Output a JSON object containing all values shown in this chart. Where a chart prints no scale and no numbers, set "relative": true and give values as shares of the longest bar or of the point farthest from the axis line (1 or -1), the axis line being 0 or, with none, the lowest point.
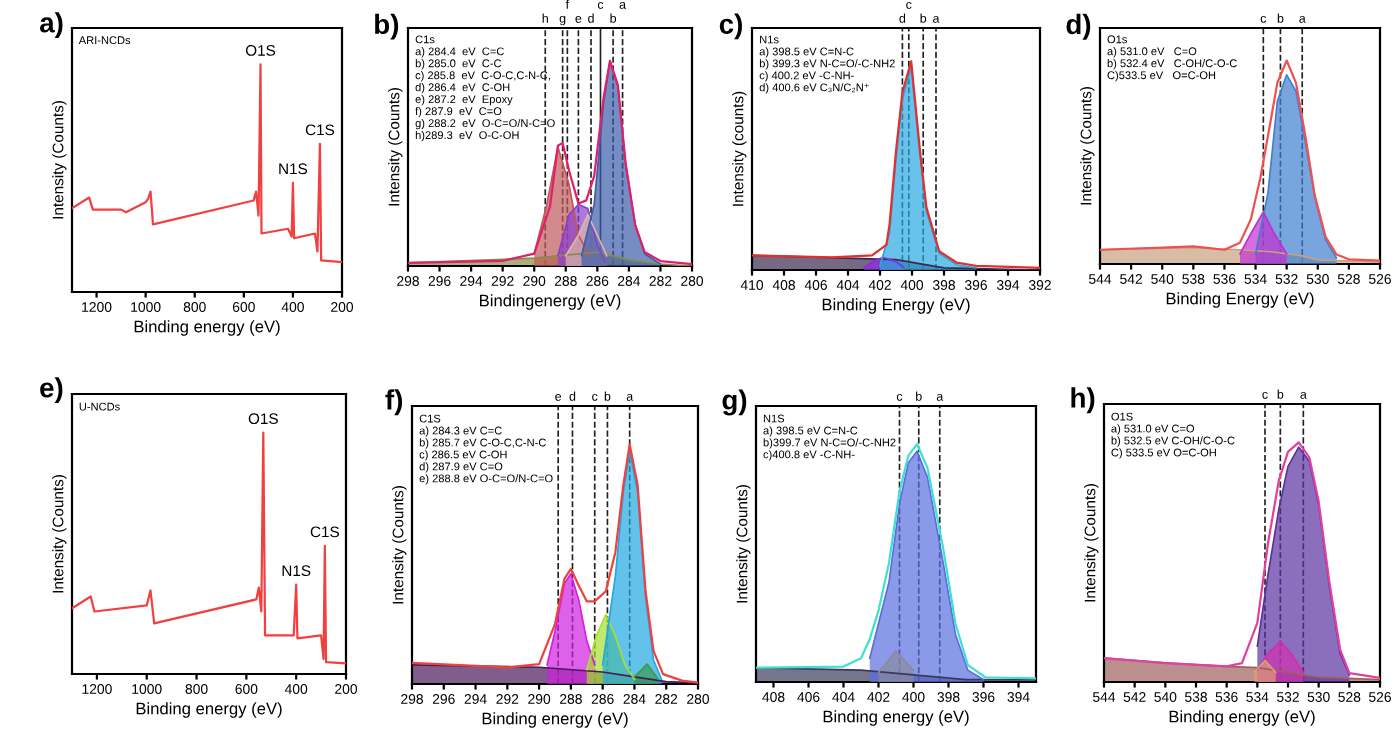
{
  "chart_data": [
    {
      "type": "line",
      "title": "a)",
      "xlabel": "Binding energy (eV)",
      "ylabel": "Intensity (Counts)",
      "relative": true,
      "xlim": [
        1300,
        200
      ],
      "xticks": [
        1200,
        1000,
        800,
        600,
        400,
        200
      ],
      "annotations": [
        "ARI-NCDs",
        {
          "text": "O1S",
          "x": 532,
          "y": 1
        },
        {
          "text": "N1S",
          "x": 400,
          "y": 0.48
        },
        {
          "text": "C1S",
          "x": 290,
          "y": 0.651
        }
      ],
      "series": [
        {
          "type": "line",
          "color": "#f04040",
          "x": [
            1300,
            1230,
            1215,
            1100,
            1080,
            1000,
            990,
            980,
            970,
            560,
            550,
            540,
            532,
            528,
            420,
            405,
            400,
            395,
            310,
            300,
            290,
            285,
            200
          ],
          "values": [
            0.368,
            0.415,
            0.362,
            0.362,
            0.35,
            0.394,
            0.409,
            0.441,
            0.297,
            0.402,
            0.441,
            0.336,
            1,
            0.257,
            0.278,
            0.244,
            0.48,
            0.236,
            0.257,
            0.178,
            0.651,
            0.139,
            0.131
          ]
        }
      ]
    },
    {
      "type": "line",
      "title": "b)",
      "xlabel": "Bindingenergy (eV)",
      "ylabel": "Intensity (Counts)",
      "relative": true,
      "xlim": [
        298,
        280
      ],
      "xticks": [
        298,
        296,
        294,
        292,
        290,
        288,
        286,
        284,
        282,
        280
      ],
      "annotations": [
        "C1s\na) 284.4  eV  C=C\nb) 285.0  eV  C-C\nc) 285.8  eV  C-O-C,C-N-C,\nd) 286.4  eV  C-OH\ne) 287.2  eV  Epoxy\nf) 287.9  eV  C=O\ng) 288.2  eV  O-C=O/N-C=O\nh)289.3  eV  O-C-OH"
      ],
      "ref_lines": [
        {
          "axis": "x",
          "value": 289.3,
          "label": "h"
        },
        {
          "axis": "x",
          "value": 288.2,
          "label": "g"
        },
        {
          "axis": "x",
          "value": 287.9,
          "label": "f"
        },
        {
          "axis": "x",
          "value": 287.2,
          "label": "e"
        },
        {
          "axis": "x",
          "value": 286.4,
          "label": "d"
        },
        {
          "axis": "x",
          "value": 285.8,
          "label": "c",
          "line_style": "solid"
        },
        {
          "axis": "x",
          "value": 285.0,
          "label": "b"
        },
        {
          "axis": "x",
          "value": 284.4,
          "label": "a"
        }
      ],
      "series": [
        {
          "type": "area",
          "color": "#8b8a4a",
          "x": [
            298,
            290,
            286,
            284,
            282,
            280
          ],
          "values": [
            0.015,
            0.038,
            0.068,
            0.03,
            0.009,
            0
          ]
        },
        {
          "type": "area",
          "color": "#c05858",
          "x": [
            290,
            289.2,
            288.5,
            287.8,
            287.2,
            286.5
          ],
          "values": [
            0.06,
            0.3,
            0.58,
            0.4,
            0.15,
            0.05
          ]
        },
        {
          "type": "area",
          "color": "#8a3fd0",
          "x": [
            288.5,
            287.8,
            287.2,
            286.6,
            286,
            285.5
          ],
          "values": [
            0.05,
            0.25,
            0.3,
            0.28,
            0.1,
            0.02
          ]
        },
        {
          "type": "area",
          "color": "#d9b8a8",
          "x": [
            288,
            287.2,
            286.6,
            286,
            285.4
          ],
          "values": [
            0.05,
            0.15,
            0.25,
            0.15,
            0.05
          ]
        },
        {
          "type": "area",
          "color": "#3a5ca8",
          "x": [
            287,
            286.2,
            285.6,
            285.2,
            284.7,
            284.2,
            283.6,
            283,
            282
          ],
          "values": [
            0.05,
            0.3,
            0.8,
            1,
            0.88,
            0.49,
            0.2,
            0.06,
            0.01
          ]
        },
        {
          "type": "line",
          "color": "#e0206a",
          "x": [
            298,
            292,
            290,
            289,
            288.5,
            288.2,
            287.8,
            287.2,
            286.7,
            286.2,
            285.6,
            285.2,
            284.7,
            284.2,
            283.6,
            283,
            282,
            280
          ],
          "values": [
            0.015,
            0.025,
            0.06,
            0.29,
            0.586,
            0.6,
            0.467,
            0.305,
            0.32,
            0.438,
            0.822,
            1,
            0.882,
            0.497,
            0.2,
            0.068,
            0.024,
            0.009
          ]
        }
      ]
    },
    {
      "type": "line",
      "title": "c)",
      "xlabel": "Binding Energy (eV)",
      "ylabel": "Intensity (counts)",
      "relative": true,
      "xlim": [
        410,
        392
      ],
      "xticks": [
        410,
        408,
        406,
        404,
        402,
        400,
        398,
        396,
        394,
        392
      ],
      "annotations": [
        "N1s\na) 398.5 eV C=N-C\nb) 399.3 eV N-C=O/-C-NH2\nc) 400.2 eV -C-NH-\nd) 400.6 eV C₃N/C₂N⁺"
      ],
      "ref_lines": [
        {
          "axis": "x",
          "value": 400.6,
          "label": "d"
        },
        {
          "axis": "x",
          "value": 400.2,
          "label": "c"
        },
        {
          "axis": "x",
          "value": 399.3,
          "label": "b"
        },
        {
          "axis": "x",
          "value": 398.5,
          "label": "a"
        }
      ],
      "series": [
        {
          "type": "area",
          "color": "#3a2a50",
          "x": [
            410,
            401,
            398,
            392
          ],
          "values": [
            0.07,
            0.05,
            0.01,
            0
          ]
        },
        {
          "type": "area",
          "color": "#8a2be2",
          "x": [
            403,
            402.5,
            401.8,
            401,
            400.5
          ],
          "values": [
            0.01,
            0.04,
            0.06,
            0.04,
            0.01
          ]
        },
        {
          "type": "area",
          "color": "#2aa8e0",
          "x": [
            402,
            401.4,
            401,
            400.6,
            400.05,
            399.5,
            399.1,
            398.3,
            397.2,
            396
          ],
          "values": [
            0.02,
            0.18,
            0.53,
            0.82,
            0.97,
            0.55,
            0.28,
            0.08,
            0.025,
            0.01
          ]
        },
        {
          "type": "line",
          "color": "#e03030",
          "x": [
            410,
            405,
            402.5,
            401.6,
            401.4,
            401,
            400.6,
            400.05,
            399.5,
            399.1,
            398.3,
            397.2,
            396,
            392
          ],
          "values": [
            0.07,
            0.06,
            0.07,
            0.12,
            0.22,
            0.57,
            0.85,
            1,
            0.57,
            0.3,
            0.09,
            0.035,
            0.02,
            0.01
          ]
        }
      ]
    },
    {
      "type": "line",
      "title": "d)",
      "xlabel": "Binding Energy (eV)",
      "ylabel": "Intensity (Counts)",
      "relative": true,
      "xlim": [
        544,
        526
      ],
      "xticks": [
        544,
        542,
        540,
        538,
        536,
        534,
        532,
        530,
        528,
        526
      ],
      "annotations": [
        "O1s\na) 531.0 eV   C=O\nb) 532.4 eV   C-OH/C-O-C\nC)533.5 eV   O=C-OH"
      ],
      "ref_lines": [
        {
          "axis": "x",
          "value": 533.5,
          "label": "c"
        },
        {
          "axis": "x",
          "value": 532.4,
          "label": "b"
        },
        {
          "axis": "x",
          "value": 531.0,
          "label": "a"
        }
      ],
      "series": [
        {
          "type": "area",
          "color": "#c8a080",
          "x": [
            544,
            538,
            535,
            533,
            531,
            530,
            526
          ],
          "values": [
            0.07,
            0.08,
            0.07,
            0.06,
            0.04,
            0.02,
            0.01
          ]
        },
        {
          "type": "area",
          "color": "#3f7fd0",
          "x": [
            534,
            533.2,
            532.6,
            532,
            531.4,
            530.8,
            530.2,
            529.5,
            528.8
          ],
          "values": [
            0.05,
            0.35,
            0.8,
            0.93,
            0.85,
            0.6,
            0.33,
            0.12,
            0.03
          ]
        },
        {
          "type": "area",
          "color": "#c030d0",
          "x": [
            535,
            534.3,
            533.5,
            532.8,
            532
          ],
          "values": [
            0.05,
            0.15,
            0.256,
            0.15,
            0.05
          ]
        },
        {
          "type": "line",
          "color": "#f05050",
          "x": [
            544,
            540,
            538,
            536,
            535,
            534.3,
            533.7,
            533.2,
            532.6,
            532,
            531.4,
            530.8,
            530.2,
            529.5,
            528.8,
            528,
            526
          ],
          "values": [
            0.07,
            0.08,
            0.087,
            0.07,
            0.105,
            0.22,
            0.42,
            0.63,
            0.89,
            1,
            0.89,
            0.63,
            0.34,
            0.134,
            0.047,
            0.023,
            0.017
          ]
        }
      ]
    },
    {
      "type": "line",
      "title": "e)",
      "xlabel": "Binding energy (eV)",
      "ylabel": "Intensity (Counts)",
      "relative": true,
      "xlim": [
        1300,
        200
      ],
      "xticks": [
        1200,
        1000,
        800,
        600,
        400,
        200
      ],
      "annotations": [
        "U-NCDs",
        {
          "text": "O1S",
          "x": 532,
          "y": 1
        },
        {
          "text": "N1S",
          "x": 400,
          "y": 0.37
        },
        {
          "text": "C1S",
          "x": 285,
          "y": 0.531
        }
      ],
      "series": [
        {
          "type": "line",
          "color": "#f04040",
          "x": [
            1300,
            1225,
            1210,
            1000,
            985,
            970,
            560,
            550,
            540,
            532,
            525,
            410,
            400,
            395,
            300,
            290,
            285,
            280,
            200
          ],
          "values": [
            0.272,
            0.321,
            0.259,
            0.284,
            0.346,
            0.21,
            0.309,
            0.358,
            0.259,
            1,
            0.16,
            0.16,
            0.37,
            0.148,
            0.16,
            0.062,
            0.531,
            0.049,
            0.044
          ]
        }
      ]
    },
    {
      "type": "line",
      "title": "f)",
      "xlabel": "Binding energy (eV)",
      "ylabel": "Intensity (Counts)",
      "relative": true,
      "xlim": [
        298,
        280
      ],
      "xticks": [
        298,
        296,
        294,
        292,
        290,
        288,
        286,
        284,
        282,
        280
      ],
      "annotations": [
        "C1S\na) 284.3 eV C=C\nb) 285.7 eV C-O-C,C-N-C\nc) 286.5 eV C-OH\nd) 287.9 eV C=O\ne) 288.8 eV O-C=O/N-C=O"
      ],
      "ref_lines": [
        {
          "axis": "x",
          "value": 288.8,
          "label": "e"
        },
        {
          "axis": "x",
          "value": 287.9,
          "label": "d"
        },
        {
          "axis": "x",
          "value": 286.5,
          "label": "c"
        },
        {
          "axis": "x",
          "value": 285.7,
          "label": "b"
        },
        {
          "axis": "x",
          "value": 284.3,
          "label": "a"
        }
      ],
      "series": [
        {
          "type": "area",
          "color": "#4a1a5a",
          "x": [
            298,
            290,
            286,
            284,
            282,
            280
          ],
          "values": [
            0.08,
            0.07,
            0.05,
            0.03,
            0.01,
            0.005
          ]
        },
        {
          "type": "area",
          "color": "#d020e0",
          "x": [
            289.5,
            289,
            288.4,
            288,
            287.5,
            287,
            286.5
          ],
          "values": [
            0.08,
            0.22,
            0.42,
            0.46,
            0.35,
            0.18,
            0.08
          ]
        },
        {
          "type": "area",
          "color": "#a8e030",
          "x": [
            287,
            286.4,
            285.8,
            285.2,
            284.6,
            284
          ],
          "values": [
            0.06,
            0.2,
            0.29,
            0.2,
            0.08,
            0.02
          ]
        },
        {
          "type": "area",
          "color": "#20a8e0",
          "x": [
            286,
            285.2,
            284.7,
            284.3,
            283.8,
            283.3,
            282.8,
            282.3
          ],
          "values": [
            0.08,
            0.45,
            0.8,
            0.97,
            0.8,
            0.36,
            0.1,
            0.02
          ]
        },
        {
          "type": "area",
          "color": "#3a9a50",
          "x": [
            284,
            283.2,
            282.5
          ],
          "values": [
            0.03,
            0.083,
            0.02
          ]
        },
        {
          "type": "line",
          "color": "#f04040",
          "x": [
            298,
            292,
            290,
            289,
            288.4,
            288,
            287.5,
            287,
            286.5,
            285.8,
            285.2,
            284.7,
            284.3,
            283.8,
            283.3,
            282.8,
            282.2,
            281,
            280
          ],
          "values": [
            0.088,
            0.069,
            0.083,
            0.25,
            0.44,
            0.48,
            0.41,
            0.345,
            0.345,
            0.387,
            0.55,
            0.83,
            1,
            0.83,
            0.387,
            0.138,
            0.041,
            0.014,
            0.006
          ]
        }
      ]
    },
    {
      "type": "line",
      "title": "g)",
      "xlabel": "Binding energy (eV)",
      "ylabel": "Intensity (Counts)",
      "relative": true,
      "xlim": [
        409,
        393
      ],
      "xticks": [
        408,
        406,
        404,
        402,
        400,
        398,
        396,
        394
      ],
      "annotations": [
        "N1S\na) 398.5 eV C=N-C\nb)399.7 eV N-C=O/-C-NH2\nc)400.8 eV -C-NH-"
      ],
      "ref_lines": [
        {
          "axis": "x",
          "value": 400.8,
          "label": "c"
        },
        {
          "axis": "x",
          "value": 399.7,
          "label": "b"
        },
        {
          "axis": "x",
          "value": 398.5,
          "label": "a"
        }
      ],
      "series": [
        {
          "type": "area",
          "color": "#3a3a5a",
          "x": [
            409,
            403,
            400,
            397,
            393
          ],
          "values": [
            0.06,
            0.05,
            0.03,
            0.01,
            0.01
          ]
        },
        {
          "type": "area",
          "color": "#5a6ee0",
          "x": [
            402.5,
            401.4,
            400.8,
            400.3,
            399.8,
            399.2,
            398.8,
            398.3,
            397.6,
            396.9,
            396
          ],
          "values": [
            0.1,
            0.42,
            0.75,
            0.92,
            0.97,
            0.86,
            0.7,
            0.5,
            0.2,
            0.05,
            0.01
          ]
        },
        {
          "type": "area",
          "color": "#8a8aa0",
          "x": [
            402,
            401,
            400
          ],
          "values": [
            0.04,
            0.13,
            0.05
          ]
        },
        {
          "type": "line",
          "color": "#40e0d0",
          "x": [
            409,
            404,
            403,
            402.5,
            402,
            401.4,
            400.8,
            400.3,
            399.8,
            399.2,
            398.8,
            398.3,
            397.6,
            396.9,
            395.9,
            393
          ],
          "values": [
            0.06,
            0.065,
            0.1,
            0.18,
            0.3,
            0.5,
            0.8,
            0.95,
            1,
            0.9,
            0.75,
            0.56,
            0.245,
            0.072,
            0.02,
            0.015
          ]
        }
      ]
    },
    {
      "type": "line",
      "title": "h)",
      "xlabel": "Binding energy (eV)",
      "ylabel": "Intensity (Counts)",
      "relative": true,
      "xlim": [
        544,
        526
      ],
      "xticks": [
        544,
        542,
        540,
        538,
        536,
        534,
        532,
        530,
        528,
        526
      ],
      "annotations": [
        "O1S\na) 531.0 eV C=O\nb) 532.5 eV C-OH/C-O-C\nC) 533.5 eV O=C-OH"
      ],
      "ref_lines": [
        {
          "axis": "x",
          "value": 533.5,
          "label": "c"
        },
        {
          "axis": "x",
          "value": 532.5,
          "label": "b"
        },
        {
          "axis": "x",
          "value": 531.0,
          "label": "a"
        }
      ],
      "series": [
        {
          "type": "area",
          "color": "#a06060",
          "x": [
            544,
            540,
            536,
            534,
            532,
            530,
            526
          ],
          "values": [
            0.1,
            0.08,
            0.065,
            0.06,
            0.04,
            0.02,
            0.01
          ]
        },
        {
          "type": "area",
          "color": "#5a30a0",
          "x": [
            534,
            533.3,
            532.6,
            532,
            531.3,
            530.6,
            530,
            529.3,
            528.6,
            528
          ],
          "values": [
            0.15,
            0.45,
            0.72,
            0.9,
            0.98,
            0.92,
            0.74,
            0.4,
            0.12,
            0.03
          ]
        },
        {
          "type": "area",
          "color": "#d030b0",
          "x": [
            534,
            533.3,
            532.5,
            531.8,
            531
          ],
          "values": [
            0.05,
            0.12,
            0.17,
            0.12,
            0.04
          ]
        },
        {
          "type": "area",
          "color": "#e0a070",
          "x": [
            534.2,
            533.5,
            532.8
          ],
          "values": [
            0.04,
            0.09,
            0.04
          ]
        },
        {
          "type": "line",
          "color": "#e040a0",
          "x": [
            544,
            540,
            536,
            535,
            534,
            533.3,
            532.6,
            532,
            531.3,
            530.6,
            530,
            529.3,
            528.6,
            528,
            526
          ],
          "values": [
            0.1,
            0.079,
            0.065,
            0.079,
            0.247,
            0.58,
            0.84,
            0.96,
            1,
            0.935,
            0.753,
            0.416,
            0.135,
            0.037,
            0.017
          ]
        }
      ]
    }
  ]
}
